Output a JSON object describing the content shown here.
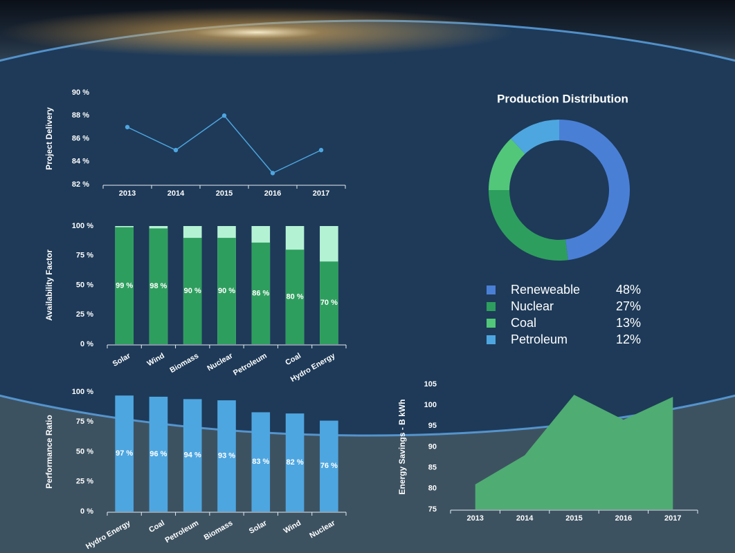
{
  "chart_data": [
    {
      "type": "line",
      "y_label": "Project Delivery",
      "categories": [
        "2013",
        "2014",
        "2015",
        "2016",
        "2017"
      ],
      "values": [
        87,
        85,
        88,
        83,
        85
      ],
      "color": "#4ea6e0",
      "ylim": [
        82,
        90
      ],
      "yticks": [
        {
          "value": 82,
          "label": "82 %"
        },
        {
          "value": 84,
          "label": "84 %"
        },
        {
          "value": 86,
          "label": "86 %"
        },
        {
          "value": 88,
          "label": "88 %"
        },
        {
          "value": 90,
          "label": "90 %"
        }
      ]
    },
    {
      "type": "bar",
      "y_label": "Availability Factor",
      "categories": [
        "Solar",
        "Wind",
        "Biomass",
        "Nuclear",
        "Petroleum",
        "Coal",
        "Hydro Energy"
      ],
      "values": [
        99,
        98,
        90,
        90,
        86,
        80,
        70
      ],
      "value_labels": [
        "99 %",
        "98 %",
        "90 %",
        "90 %",
        "86 %",
        "80 %",
        "70 %"
      ],
      "color": "#2e9e5e",
      "background_color": "#b4f2d4",
      "ylim": [
        0,
        100
      ],
      "yticks": [
        {
          "value": 0,
          "label": "0 %"
        },
        {
          "value": 25,
          "label": "25 %"
        },
        {
          "value": 50,
          "label": "50 %"
        },
        {
          "value": 75,
          "label": "75 %"
        },
        {
          "value": 100,
          "label": "100 %"
        }
      ]
    },
    {
      "type": "bar",
      "y_label": "Performance Ratio",
      "categories": [
        "Hydro Energy",
        "Coal",
        "Petroleum",
        "Biomass",
        "Solar",
        "Wind",
        "Nuclear"
      ],
      "values": [
        97,
        96,
        94,
        93,
        83,
        82,
        76
      ],
      "value_labels": [
        "97 %",
        "96 %",
        "94 %",
        "93 %",
        "83 %",
        "82 %",
        "76 %"
      ],
      "color": "#4ea6e0",
      "ylim": [
        0,
        100
      ],
      "yticks": [
        {
          "value": 0,
          "label": "0 %"
        },
        {
          "value": 25,
          "label": "25 %"
        },
        {
          "value": 50,
          "label": "50 %"
        },
        {
          "value": 75,
          "label": "75 %"
        },
        {
          "value": 100,
          "label": "100 %"
        }
      ]
    },
    {
      "type": "pie",
      "title": "Production Distribution",
      "donut": true,
      "categories": [
        "Reneweable",
        "Nuclear",
        "Coal",
        "Petroleum"
      ],
      "values": [
        48,
        27,
        13,
        12
      ],
      "value_labels": [
        "48%",
        "27%",
        "13%",
        "12%"
      ],
      "colors": [
        "#4a7fd6",
        "#2e9e5e",
        "#52c77a",
        "#4ea6e0"
      ]
    },
    {
      "type": "area",
      "y_label": "Energy Savings - B kWh",
      "categories": [
        "2013",
        "2014",
        "2015",
        "2016",
        "2017"
      ],
      "values": [
        81,
        88,
        102.5,
        96.5,
        102
      ],
      "color": "#4fac72",
      "ylim": [
        75,
        105
      ],
      "yticks": [
        75,
        80,
        85,
        90,
        95,
        100,
        105
      ]
    }
  ]
}
